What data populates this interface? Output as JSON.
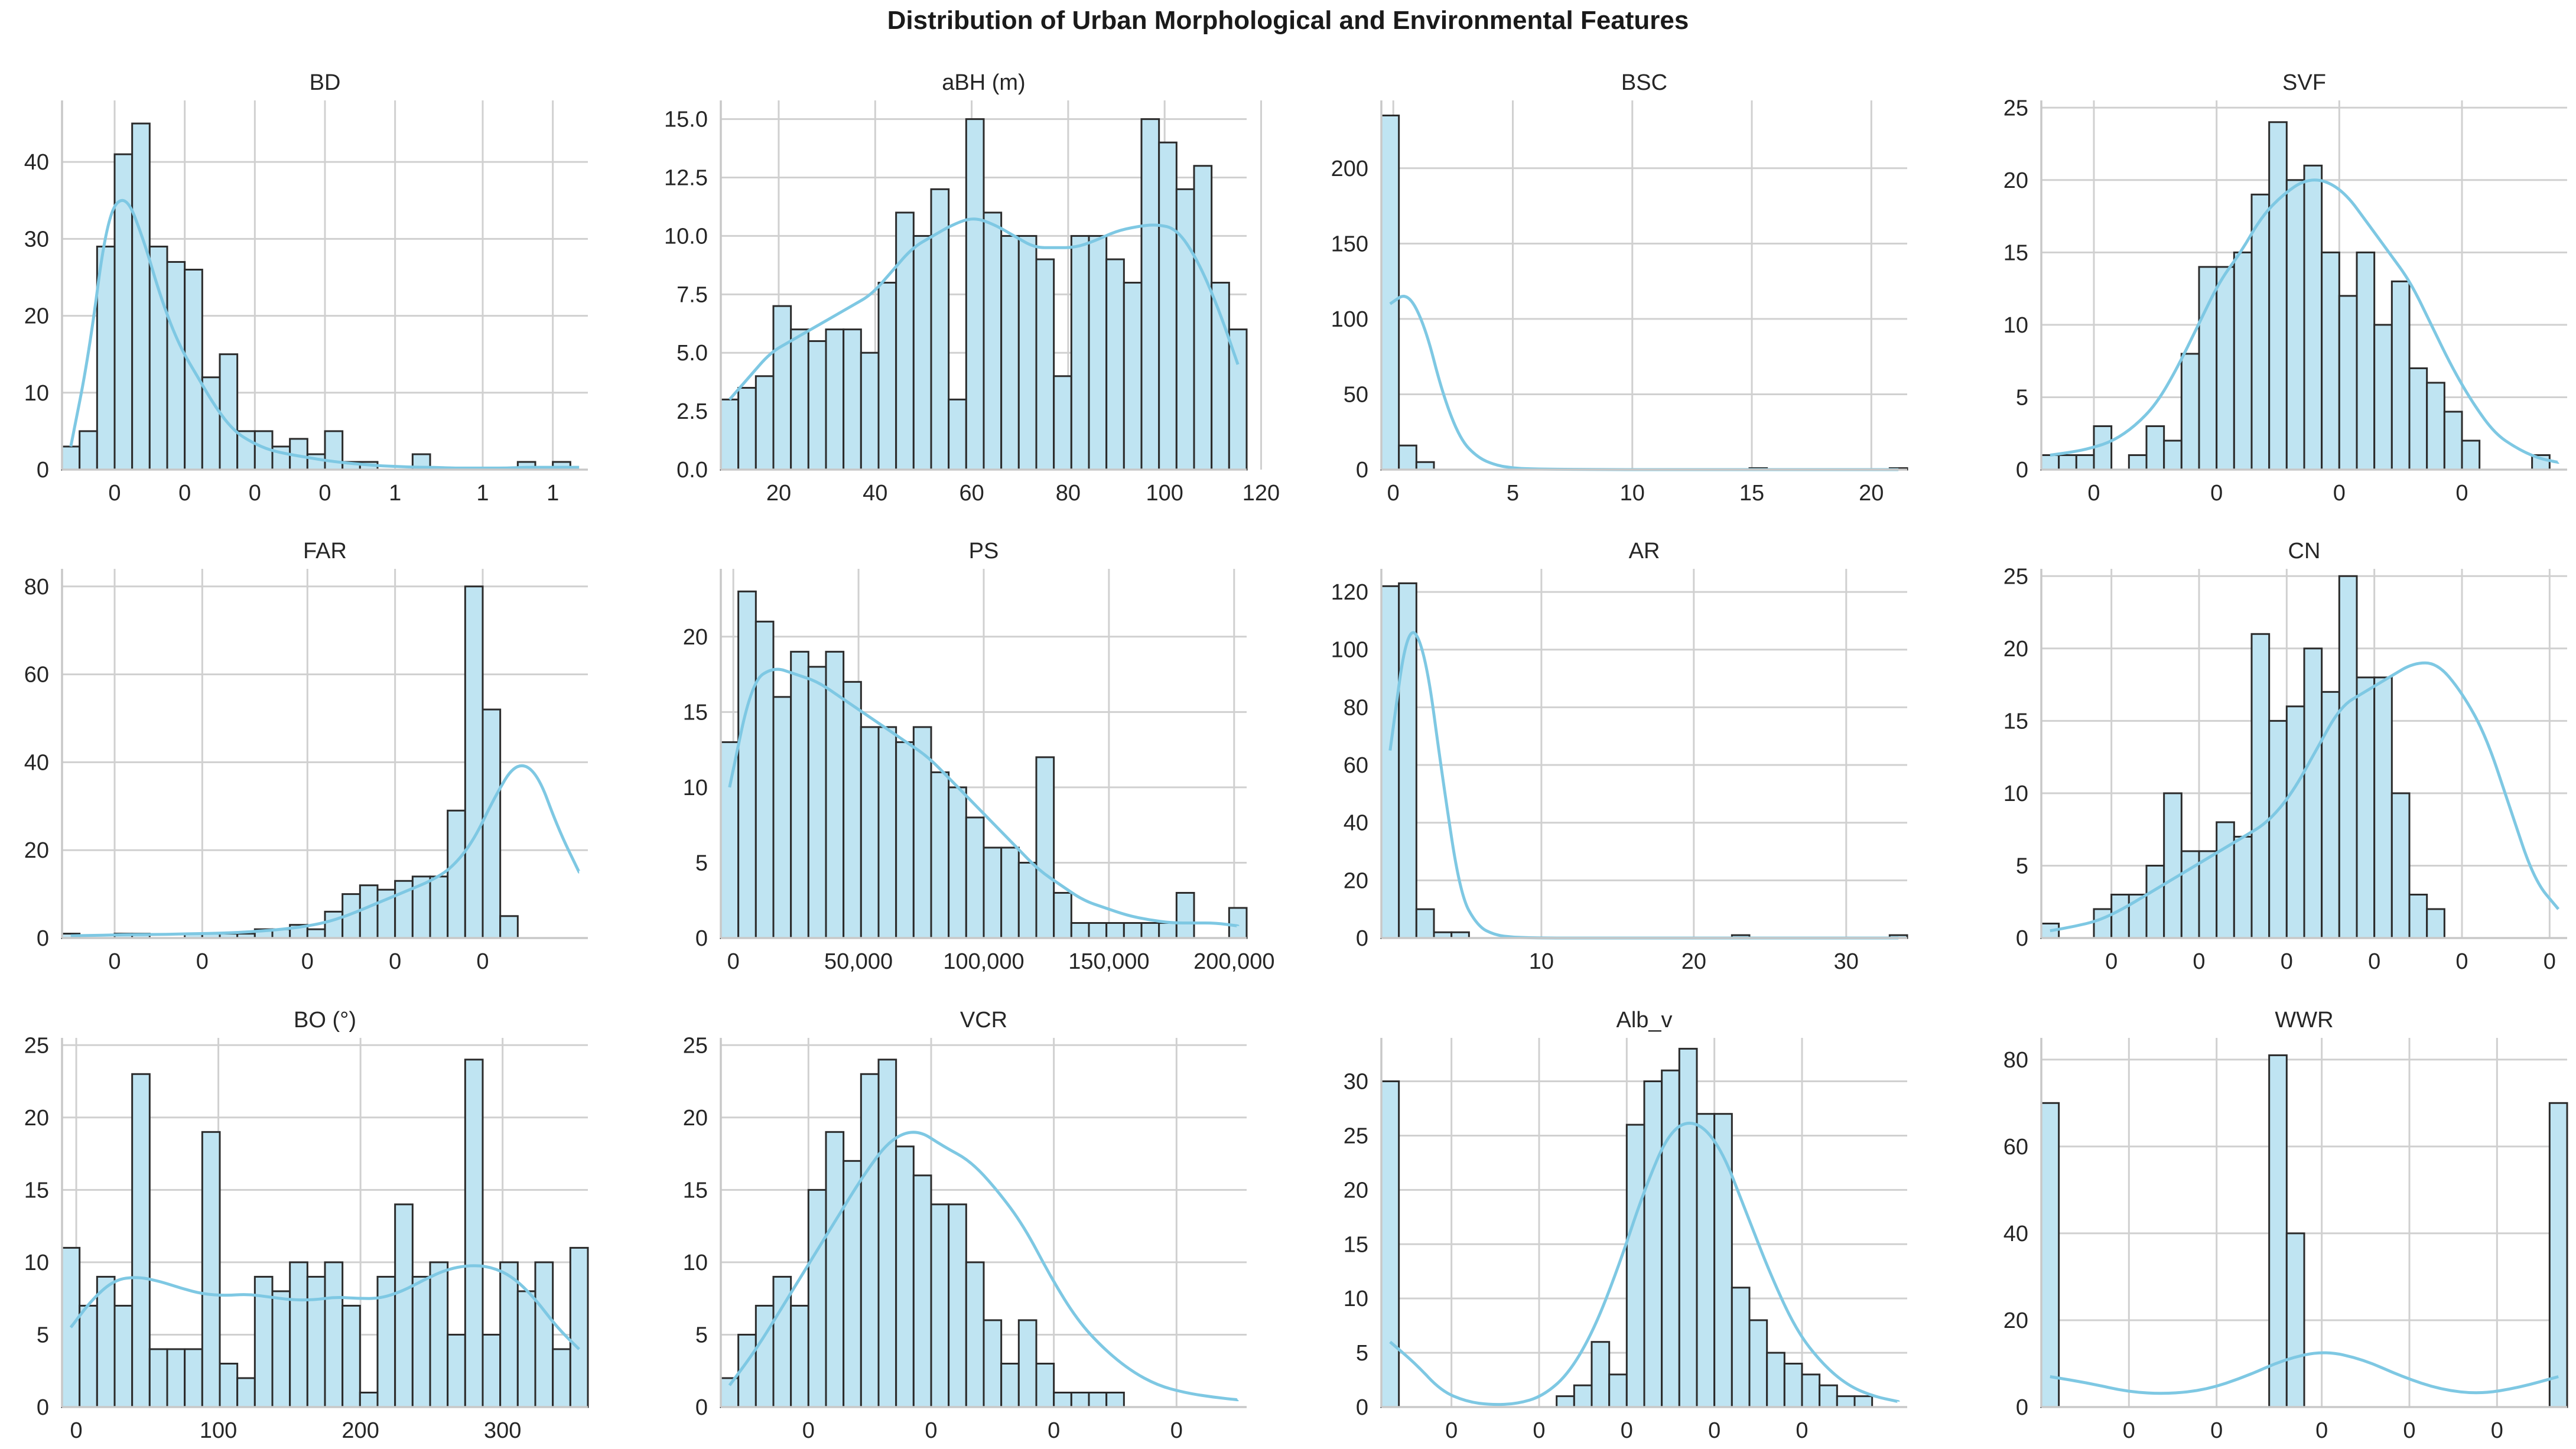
{
  "title": "Distribution of Urban Morphological and Environmental Features",
  "colors": {
    "bar_fill": "#bfe4f2",
    "bar_edge": "#2b2b2b",
    "kde": "#7ec8e3",
    "grid": "#d0d0d0"
  },
  "chart_data": [
    {
      "type": "bar",
      "title": "BD",
      "ylim": [
        0,
        48
      ],
      "yticks": [
        0,
        10,
        20,
        30,
        40
      ],
      "ytick_labels": [
        "0",
        "10",
        "20",
        "30",
        "40"
      ],
      "xlim": [
        0,
        30
      ],
      "xticks": [
        3,
        7,
        11,
        15,
        19,
        24,
        28
      ],
      "xtick_labels": [
        "0",
        "0",
        "0",
        "0",
        "1",
        "1",
        "1"
      ],
      "values": [
        3,
        5,
        29,
        41,
        45,
        29,
        27,
        26,
        12,
        15,
        5,
        5,
        3,
        4,
        2,
        5,
        1,
        1,
        0,
        0,
        2,
        0,
        0,
        0,
        0,
        0,
        1,
        0,
        1,
        0
      ],
      "kde": [
        3,
        15,
        33,
        36,
        30,
        22,
        16,
        12,
        8,
        5,
        3.5,
        2.5,
        2,
        1.6,
        1.2,
        0.9,
        0.7,
        0.5,
        0.4,
        0.3,
        0.3,
        0.2,
        0.2,
        0.2,
        0.2,
        0.3,
        0.3,
        0.3,
        0.3
      ]
    },
    {
      "type": "bar",
      "title": "aBH (m)",
      "ylim": [
        0,
        15.8
      ],
      "yticks": [
        0,
        2.5,
        5,
        7.5,
        10,
        12.5,
        15
      ],
      "ytick_labels": [
        "0.0",
        "2.5",
        "5.0",
        "7.5",
        "10.0",
        "12.5",
        "15.0"
      ],
      "xlim": [
        8,
        117
      ],
      "xticks": [
        20,
        40,
        60,
        80,
        100,
        120
      ],
      "xtick_labels": [
        "20",
        "40",
        "60",
        "80",
        "100",
        "120"
      ],
      "values": [
        3,
        3.5,
        4,
        7,
        6,
        5.5,
        6,
        6,
        5,
        8,
        11,
        10,
        12,
        3,
        15,
        11,
        10,
        10,
        9,
        4,
        10,
        10,
        9,
        8,
        15,
        14,
        12,
        13,
        8,
        6
      ],
      "kde": [
        3,
        4,
        5,
        5.5,
        6,
        6.5,
        7,
        7.5,
        8.5,
        9.5,
        10,
        10.5,
        10.8,
        10.5,
        10,
        9.5,
        9.5,
        9.5,
        9.8,
        10.2,
        10.4,
        10.5,
        10.3,
        9,
        7,
        4.5
      ]
    },
    {
      "type": "bar",
      "title": "BSC",
      "ylim": [
        0,
        245
      ],
      "yticks": [
        0,
        50,
        100,
        150,
        200
      ],
      "ytick_labels": [
        "0",
        "50",
        "100",
        "150",
        "200"
      ],
      "xlim": [
        -0.5,
        21.5
      ],
      "xticks": [
        0,
        5,
        10,
        15,
        20
      ],
      "xtick_labels": [
        "0",
        "5",
        "10",
        "15",
        "20"
      ],
      "values": [
        235,
        16,
        5,
        0,
        0,
        0,
        0,
        0,
        0,
        0,
        0,
        0,
        0,
        0,
        0,
        0,
        0,
        0,
        0,
        0,
        0,
        1,
        0,
        0,
        0,
        0,
        0,
        0,
        0,
        1
      ],
      "kde": [
        110,
        118,
        95,
        50,
        20,
        8,
        3,
        1,
        0.5,
        0.3,
        0.2,
        0.1,
        0.1,
        0,
        0,
        0,
        0,
        0,
        0,
        0,
        0,
        0,
        0,
        0,
        0,
        0,
        0,
        0,
        0,
        0
      ]
    },
    {
      "type": "bar",
      "title": "SVF",
      "ylim": [
        0,
        25.5
      ],
      "yticks": [
        0,
        5,
        10,
        15,
        20,
        25
      ],
      "ytick_labels": [
        "0",
        "5",
        "10",
        "15",
        "20",
        "25"
      ],
      "xlim": [
        0,
        30
      ],
      "xticks": [
        3,
        10,
        17,
        24
      ],
      "xtick_labels": [
        "0",
        "0",
        "0",
        "0"
      ],
      "values": [
        1,
        1,
        1,
        3,
        0,
        1,
        3,
        2,
        8,
        14,
        14,
        15,
        19,
        24,
        20,
        21,
        15,
        12,
        15,
        10,
        13,
        7,
        6,
        4,
        2,
        0,
        0,
        0,
        1,
        0
      ],
      "kde": [
        1,
        1.2,
        1.5,
        2,
        3,
        4.5,
        7,
        10,
        13,
        15,
        17.5,
        19,
        20,
        20,
        19,
        17,
        15,
        13,
        10,
        7,
        4.5,
        2.5,
        1.5,
        0.8,
        0.5
      ]
    },
    {
      "type": "bar",
      "title": "FAR",
      "ylim": [
        0,
        84
      ],
      "yticks": [
        0,
        20,
        40,
        60,
        80
      ],
      "ytick_labels": [
        "0",
        "20",
        "40",
        "60",
        "80"
      ],
      "xlim": [
        0,
        30
      ],
      "xticks": [
        3,
        8,
        14,
        19,
        24
      ],
      "xtick_labels": [
        "0",
        "0",
        "0",
        "0",
        "0"
      ],
      "values": [
        1,
        0,
        0,
        1,
        1,
        0,
        0,
        1,
        1,
        1,
        1,
        2,
        2,
        3,
        2,
        6,
        10,
        12,
        11,
        13,
        14,
        14,
        29,
        80,
        52,
        5,
        0,
        0,
        0,
        0
      ],
      "kde": [
        0.5,
        0.6,
        0.7,
        0.8,
        0.8,
        0.9,
        1,
        1.1,
        1.3,
        1.6,
        2,
        2.6,
        3.5,
        5,
        7,
        9,
        11,
        13,
        16,
        22,
        32,
        40,
        38,
        25,
        15
      ]
    },
    {
      "type": "bar",
      "title": "PS",
      "ylim": [
        0,
        24.5
      ],
      "yticks": [
        0,
        5,
        10,
        15,
        20
      ],
      "ytick_labels": [
        "0",
        "5",
        "10",
        "15",
        "20"
      ],
      "xlim": [
        -5000,
        205000
      ],
      "xticks": [
        0,
        50000,
        100000,
        150000,
        200000
      ],
      "xtick_labels": [
        "0",
        "50,000",
        "100,000",
        "150,000",
        "200,000"
      ],
      "values": [
        13,
        23,
        21,
        16,
        19,
        18,
        19,
        17,
        14,
        14,
        13,
        14,
        11,
        10,
        8,
        6,
        6,
        5,
        12,
        3,
        1,
        1,
        1,
        1,
        1,
        1,
        3,
        0,
        0,
        2
      ],
      "kde": [
        10,
        17,
        18,
        17.5,
        17,
        16,
        15,
        14,
        13,
        12,
        10.5,
        9,
        7.5,
        6,
        4.5,
        3.5,
        2.5,
        2,
        1.5,
        1.2,
        1,
        1,
        1,
        0.8
      ]
    },
    {
      "type": "bar",
      "title": "AR",
      "ylim": [
        0,
        128
      ],
      "yticks": [
        0,
        20,
        40,
        60,
        80,
        100,
        120
      ],
      "ytick_labels": [
        "0",
        "20",
        "40",
        "60",
        "80",
        "100",
        "120"
      ],
      "xlim": [
        -0.5,
        34
      ],
      "xticks": [
        10,
        20,
        30
      ],
      "xtick_labels": [
        "10",
        "20",
        "30"
      ],
      "values": [
        122,
        123,
        10,
        2,
        2,
        0,
        0,
        0,
        0,
        0,
        0,
        0,
        0,
        0,
        0,
        0,
        0,
        0,
        0,
        0,
        1,
        0,
        0,
        0,
        0,
        0,
        0,
        0,
        0,
        1
      ],
      "kde": [
        65,
        110,
        100,
        55,
        15,
        4,
        1,
        0.3,
        0.1,
        0,
        0,
        0,
        0,
        0,
        0,
        0,
        0,
        0,
        0,
        0,
        0,
        0,
        0,
        0,
        0,
        0,
        0,
        0,
        0,
        0
      ]
    },
    {
      "type": "bar",
      "title": "CN",
      "ylim": [
        0,
        25.5
      ],
      "yticks": [
        0,
        5,
        10,
        15,
        20,
        25
      ],
      "ytick_labels": [
        "0",
        "5",
        "10",
        "15",
        "20",
        "25"
      ],
      "xlim": [
        0,
        30
      ],
      "xticks": [
        4,
        9,
        14,
        19,
        24,
        29
      ],
      "xtick_labels": [
        "0",
        "0",
        "0",
        "0",
        "0",
        "0"
      ],
      "values": [
        1,
        0,
        0,
        2,
        3,
        3,
        5,
        10,
        6,
        6,
        8,
        7,
        21,
        15,
        16,
        20,
        17,
        25,
        18,
        18,
        10,
        3,
        2,
        0,
        0,
        0,
        0,
        0,
        0,
        0
      ],
      "kde": [
        0.5,
        0.8,
        1.2,
        2,
        3,
        4,
        5,
        6,
        7,
        8,
        10,
        13,
        16,
        17,
        18,
        19,
        19,
        17,
        14,
        9,
        4,
        2
      ]
    },
    {
      "type": "bar",
      "title": "BO (°)",
      "ylim": [
        0,
        25.5
      ],
      "yticks": [
        0,
        5,
        10,
        15,
        20,
        25
      ],
      "ytick_labels": [
        "0",
        "5",
        "10",
        "15",
        "20",
        "25"
      ],
      "xlim": [
        -10,
        360
      ],
      "xticks": [
        0,
        100,
        200,
        300
      ],
      "xtick_labels": [
        "0",
        "100",
        "200",
        "300"
      ],
      "values": [
        11,
        7,
        9,
        7,
        23,
        4,
        4,
        4,
        19,
        3,
        2,
        9,
        8,
        10,
        9,
        10,
        7,
        1,
        9,
        14,
        9,
        10,
        5,
        24,
        5,
        10,
        8,
        10,
        4,
        11
      ],
      "kde": [
        5.5,
        7.5,
        8.8,
        9,
        8.7,
        8.2,
        7.8,
        7.7,
        7.8,
        7.6,
        7.4,
        7.4,
        7.6,
        7.5,
        7.5,
        8,
        8.8,
        9.5,
        9.8,
        9.7,
        9,
        7.5,
        5.5,
        4
      ]
    },
    {
      "type": "bar",
      "title": "VCR",
      "ylim": [
        0,
        25.5
      ],
      "yticks": [
        0,
        5,
        10,
        15,
        20,
        25
      ],
      "ytick_labels": [
        "0",
        "5",
        "10",
        "15",
        "20",
        "25"
      ],
      "xlim": [
        0,
        30
      ],
      "xticks": [
        5,
        12,
        19,
        26
      ],
      "xtick_labels": [
        "0",
        "0",
        "0",
        "0"
      ],
      "values": [
        2,
        5,
        7,
        9,
        7,
        15,
        19,
        17,
        23,
        24,
        18,
        16,
        14,
        14,
        10,
        6,
        3,
        6,
        3,
        1,
        1,
        1,
        1,
        0,
        0,
        0,
        0,
        0,
        0,
        0
      ],
      "kde": [
        1.5,
        4,
        7,
        10,
        13,
        16,
        18.5,
        19.2,
        18,
        17,
        15,
        12.5,
        9,
        6,
        4,
        2.5,
        1.5,
        1,
        0.7,
        0.5
      ]
    },
    {
      "type": "bar",
      "title": "Alb_v",
      "ylim": [
        0,
        34
      ],
      "yticks": [
        0,
        5,
        10,
        15,
        20,
        25,
        30
      ],
      "ytick_labels": [
        "0",
        "5",
        "10",
        "15",
        "20",
        "25",
        "30"
      ],
      "xlim": [
        0,
        30
      ],
      "xticks": [
        4,
        9,
        14,
        19,
        24
      ],
      "xtick_labels": [
        "0",
        "0",
        "0",
        "0",
        "0"
      ],
      "values": [
        30,
        0,
        0,
        0,
        0,
        0,
        0,
        0,
        0,
        0,
        1,
        2,
        6,
        3,
        26,
        30,
        31,
        33,
        27,
        27,
        11,
        8,
        5,
        4,
        3,
        2,
        1,
        1,
        0,
        0
      ],
      "kde": [
        6,
        4,
        1.5,
        0.5,
        0.2,
        0.3,
        1,
        3,
        7,
        13,
        20,
        25.5,
        26.5,
        24,
        18,
        12,
        7,
        4,
        2,
        1,
        0.5
      ]
    },
    {
      "type": "bar",
      "title": "WWR",
      "ylim": [
        0,
        85
      ],
      "yticks": [
        0,
        20,
        40,
        60,
        80
      ],
      "ytick_labels": [
        "0",
        "20",
        "40",
        "60",
        "80"
      ],
      "xlim": [
        0,
        30
      ],
      "xticks": [
        5,
        10,
        16,
        21,
        26
      ],
      "xtick_labels": [
        "0",
        "0",
        "0",
        "0",
        "0"
      ],
      "values": [
        70,
        0,
        0,
        0,
        0,
        0,
        0,
        0,
        0,
        0,
        0,
        0,
        0,
        81,
        40,
        0,
        0,
        0,
        0,
        0,
        0,
        0,
        0,
        0,
        0,
        0,
        0,
        0,
        0,
        70
      ],
      "kde": [
        7,
        5.5,
        3.5,
        3,
        4,
        7,
        11,
        13,
        11,
        7,
        4,
        3,
        4.5,
        7
      ]
    }
  ]
}
